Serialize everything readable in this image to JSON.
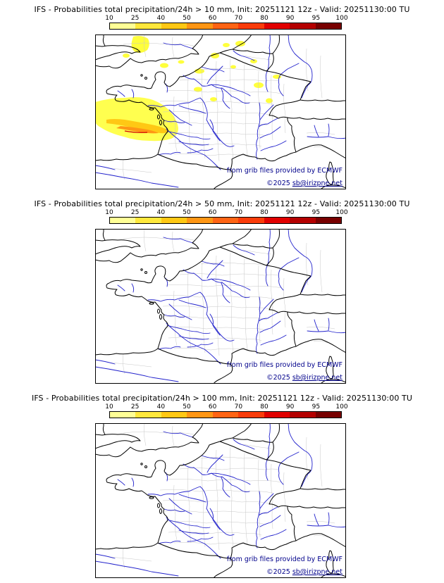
{
  "panels": [
    {
      "title": "IFS - Probabilities total precipitation/24h > 10 mm, Init: 20251121 12z - Valid: 20251130:00 TU",
      "has_precipitation": true
    },
    {
      "title": "IFS - Probabilities total precipitation/24h > 50 mm, Init: 20251121 12z - Valid: 20251130:00 TU",
      "has_precipitation": false
    },
    {
      "title": "IFS - Probabilities total precipitation/24h > 100 mm, Init: 20251121 12z - Valid: 20251130:00 TU",
      "has_precipitation": false
    }
  ],
  "colorbar": {
    "tick_labels": [
      "10",
      "25",
      "40",
      "50",
      "60",
      "70",
      "80",
      "90",
      "95",
      "100"
    ],
    "segment_colors": [
      "#ffff96",
      "#ffe83c",
      "#ffc814",
      "#ff9614",
      "#ff6414",
      "#fa3c0a",
      "#e10000",
      "#b40000",
      "#780000"
    ]
  },
  "attribution": {
    "provider": "from grib files provided by ECMWF",
    "copyright": "©2025",
    "link": "sb@irizpne.net"
  },
  "map": {
    "river_color": "#2222cc",
    "boundary_color": "#c8c8c8",
    "coast_color": "#000000",
    "precip_low": "#ffff3c",
    "precip_mid": "#ffc814",
    "precip_high": "#ff9614",
    "precip_extreme": "#d20000"
  }
}
